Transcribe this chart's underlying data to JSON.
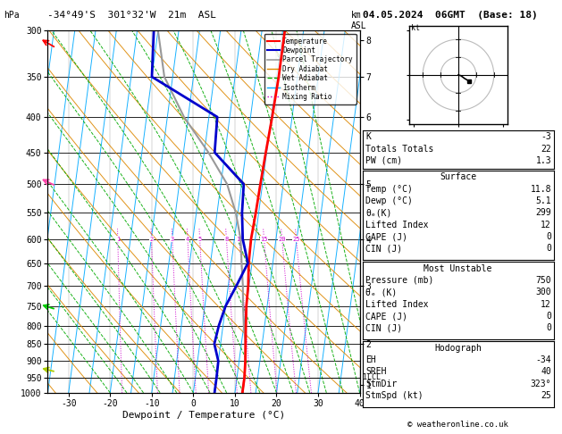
{
  "title_left": "-34°49'S  301°32'W  21m  ASL",
  "title_right": "04.05.2024  06GMT  (Base: 18)",
  "xlabel": "Dewpoint / Temperature (°C)",
  "temp_p": [
    300,
    350,
    400,
    450,
    500,
    550,
    600,
    650,
    700,
    750,
    800,
    850,
    900,
    950,
    1000
  ],
  "temp_x": [
    10.5,
    10.5,
    10.2,
    9.8,
    9.5,
    9.3,
    9.0,
    9.2,
    9.8,
    10.0,
    10.5,
    11.0,
    11.5,
    11.8,
    11.8
  ],
  "dewp_p": [
    300,
    350,
    400,
    450,
    500,
    550,
    600,
    650,
    700,
    750,
    800,
    850,
    900,
    950,
    1000
  ],
  "dewp_x": [
    -21,
    -20,
    -3,
    -2.5,
    5.5,
    6.0,
    7.0,
    9.0,
    7.0,
    5.0,
    4.0,
    3.5,
    5.0,
    5.1,
    5.1
  ],
  "parcel_p": [
    300,
    350,
    400,
    450,
    500,
    550,
    600,
    650,
    700,
    750,
    800,
    850,
    900,
    950,
    1000
  ],
  "parcel_x": [
    -20,
    -17,
    -11,
    -4,
    1.5,
    4.5,
    6.5,
    7.5,
    8.5,
    9.2,
    10.0,
    11.0,
    11.5,
    11.8,
    11.8
  ],
  "p_ticks": [
    300,
    350,
    400,
    450,
    500,
    550,
    600,
    650,
    700,
    750,
    800,
    850,
    900,
    950,
    1000
  ],
  "x_ticks": [
    -30,
    -20,
    -10,
    0,
    10,
    20,
    30,
    40
  ],
  "xlim": [
    -35,
    40
  ],
  "temp_color": "#ff0000",
  "dewp_color": "#0000cc",
  "parcel_color": "#999999",
  "dry_adiabat_color": "#dd8800",
  "wet_adiabat_color": "#00aa00",
  "isotherm_color": "#00aaff",
  "mixing_ratio_color": "#cc00cc",
  "km_ticks": [
    1,
    2,
    3,
    4,
    5,
    6,
    7,
    8
  ],
  "km_pressures": [
    975,
    850,
    700,
    600,
    500,
    400,
    350,
    310
  ],
  "mixing_ratio_values": [
    1,
    2,
    3,
    4,
    5,
    8,
    10,
    15,
    20,
    25
  ],
  "lcl_pressure": 950,
  "skew_factor": 22,
  "stats_k": "-3",
  "stats_totals": "22",
  "stats_pw": "1.3",
  "sfc_temp": "11.8",
  "sfc_dewp": "5.1",
  "sfc_theta": "299",
  "sfc_li": "12",
  "sfc_cape": "0",
  "sfc_cin": "0",
  "mu_pressure": "750",
  "mu_theta": "300",
  "mu_li": "12",
  "mu_cape": "0",
  "mu_cin": "0",
  "hodo_eh": "-34",
  "hodo_sreh": "40",
  "hodo_stmdir": "323°",
  "hodo_stmspd": "25",
  "copyright": "© weatheronline.co.uk",
  "legend_labels": [
    "Temperature",
    "Dewpoint",
    "Parcel Trajectory",
    "Dry Adiabat",
    "Wet Adiabat",
    "Isotherm",
    "Mixing Ratio"
  ]
}
